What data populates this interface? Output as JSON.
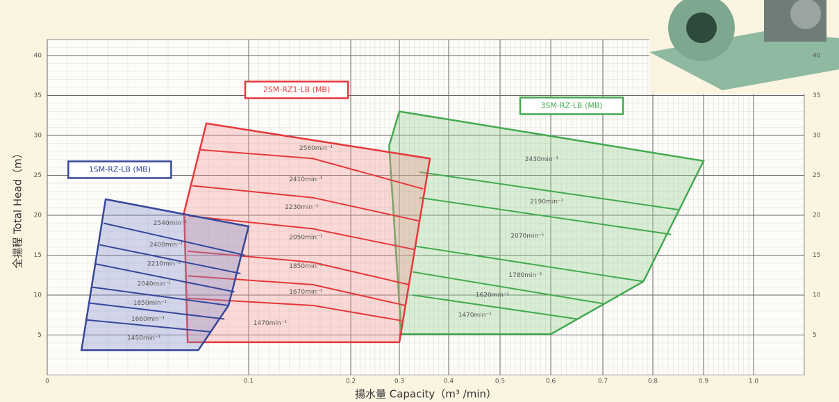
{
  "chart_data": {
    "type": "region",
    "x_label": "揚水量 Capacity（m³ /min）",
    "y_label": "全揚程 Total Head（m）",
    "xlim": [
      0,
      1.1
    ],
    "ylim": [
      0,
      42
    ],
    "xticks": [
      0,
      0.1,
      0.2,
      0.3,
      0.4,
      0.5,
      0.6,
      0.7,
      0.8,
      0.9,
      {
        "value": 1,
        "label": "1.0"
      }
    ],
    "yticks": [
      5,
      10,
      15,
      20,
      25,
      30,
      35,
      40
    ],
    "grid": true,
    "series": [
      {
        "name": "3SM-RZ-LB (MB)",
        "color": "#43a94f",
        "fill": "rgba(150,210,150,0.35)",
        "name_at": [
          0.64,
          33.7
        ],
        "outline": [
          [
            0.3,
            33.0
          ],
          [
            0.9,
            26.8
          ],
          [
            0.781,
            11.7
          ],
          [
            0.6,
            5.1
          ],
          [
            0.304,
            5.1
          ],
          [
            0.279,
            28.7
          ]
        ],
        "lines": [
          [
            [
              0.341,
              25.4
            ],
            [
              0.85,
              20.7
            ]
          ],
          [
            [
              0.341,
              22.2
            ],
            [
              0.836,
              17.6
            ]
          ],
          [
            [
              0.334,
              16.1
            ],
            [
              0.781,
              11.7
            ]
          ],
          [
            [
              0.327,
              12.9
            ],
            [
              0.703,
              8.9
            ]
          ],
          [
            [
              0.327,
              10.0
            ],
            [
              0.651,
              7.0
            ]
          ]
        ],
        "labels": [
          {
            "text": "2430min⁻¹",
            "x": 0.582,
            "y": 27.0
          },
          {
            "text": "2190min⁻¹",
            "x": 0.592,
            "y": 21.7
          },
          {
            "text": "2070min⁻¹",
            "x": 0.554,
            "y": 17.4
          },
          {
            "text": "1780min⁻¹",
            "x": 0.55,
            "y": 12.5
          },
          {
            "text": "1620min⁻¹",
            "x": 0.485,
            "y": 10.0
          },
          {
            "text": "1470min⁻¹",
            "x": 0.451,
            "y": 7.5
          }
        ]
      },
      {
        "name": "2SM-RZ1-LB (MB)",
        "color": "#e5383b",
        "fill": "rgba(242,150,150,0.35)",
        "name_at": [
          0.147,
          35.7
        ],
        "outline": [
          [
            0.079,
            31.5
          ],
          [
            0.362,
            27.1
          ],
          [
            0.3,
            4.1
          ],
          [
            0.0697,
            4.1
          ],
          [
            0.068,
            20.4
          ]
        ],
        "lines": [
          [
            [
              0.076,
              28.2
            ],
            [
              0.163,
              27.1
            ],
            [
              0.348,
              23.3
            ]
          ],
          [
            [
              0.072,
              23.7
            ],
            [
              0.163,
              22.2
            ],
            [
              0.339,
              19.3
            ]
          ],
          [
            [
              0.0703,
              19.9
            ],
            [
              0.163,
              18.3
            ],
            [
              0.331,
              15.7
            ]
          ],
          [
            [
              0.0697,
              15.5
            ],
            [
              0.163,
              14.1
            ],
            [
              0.32,
              11.3
            ]
          ],
          [
            [
              0.0697,
              12.4
            ],
            [
              0.163,
              11.3
            ],
            [
              0.312,
              8.7
            ]
          ],
          [
            [
              0.0697,
              9.6
            ],
            [
              0.163,
              8.7
            ],
            [
              0.304,
              6.8
            ]
          ]
        ],
        "labels": [
          {
            "text": "2560min⁻¹",
            "x": 0.166,
            "y": 28.4
          },
          {
            "text": "2410min⁻¹",
            "x": 0.156,
            "y": 24.5
          },
          {
            "text": "2230min⁻¹",
            "x": 0.152,
            "y": 21.0
          },
          {
            "text": "2050min⁻¹",
            "x": 0.156,
            "y": 17.2
          },
          {
            "text": "1850min⁻¹",
            "x": 0.156,
            "y": 13.6
          },
          {
            "text": "1670min⁻¹",
            "x": 0.156,
            "y": 10.4
          },
          {
            "text": "1470min⁻¹",
            "x": 0.121,
            "y": 6.5
          }
        ]
      },
      {
        "name": "1SM-RZ-LB (MB)",
        "color": "#35479a",
        "fill": "rgba(130,140,205,0.35)",
        "name_at": [
          0.036,
          25.7
        ],
        "outline": [
          [
            0.017,
            3.1
          ],
          [
            0.029,
            22.0
          ],
          [
            0.1,
            18.6
          ],
          [
            0.09,
            8.7
          ],
          [
            0.075,
            3.1
          ]
        ],
        "lines": [
          [
            [
              0.028,
              19.0
            ],
            [
              0.098,
              15.0
            ]
          ],
          [
            [
              0.026,
              16.3
            ],
            [
              0.096,
              12.7
            ]
          ],
          [
            [
              0.024,
              13.9
            ],
            [
              0.093,
              10.4
            ]
          ],
          [
            [
              0.022,
              11.0
            ],
            [
              0.09,
              8.7
            ]
          ],
          [
            [
              0.021,
              9.0
            ],
            [
              0.088,
              7.0
            ]
          ],
          [
            [
              0.019,
              6.9
            ],
            [
              0.081,
              5.4
            ]
          ]
        ],
        "labels": [
          {
            "text": "2540min⁻¹",
            "x": 0.061,
            "y": 19.0
          },
          {
            "text": "2400min⁻¹",
            "x": 0.059,
            "y": 16.3
          },
          {
            "text": "2210min⁻¹",
            "x": 0.058,
            "y": 13.9
          },
          {
            "text": "2040min⁻¹",
            "x": 0.053,
            "y": 11.4
          },
          {
            "text": "1850min⁻¹",
            "x": 0.051,
            "y": 9.0
          },
          {
            "text": "1660min⁻¹",
            "x": 0.05,
            "y": 7.0
          },
          {
            "text": "1450min⁻¹",
            "x": 0.048,
            "y": 4.6
          }
        ]
      }
    ]
  }
}
